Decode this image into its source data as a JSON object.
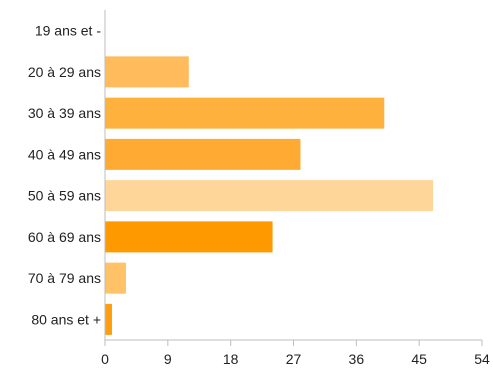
{
  "chart_data": {
    "type": "bar",
    "orientation": "horizontal",
    "categories": [
      "19 ans et -",
      "20 à 29 ans",
      "30 à 39 ans",
      "40 à 49 ans",
      "50 à 59 ans",
      "60 à 69 ans",
      "70 à 79 ans",
      "80 ans et +"
    ],
    "values": [
      0,
      12,
      40,
      28,
      47,
      24,
      3,
      1
    ],
    "bar_colors": [
      "#ffc06e",
      "#ffbb5c",
      "#ffb13d",
      "#ffab33",
      "#ffd699",
      "#ff9900",
      "#ffc266",
      "#ff9e0f"
    ],
    "xlim": [
      0,
      54
    ],
    "xticks": [
      0,
      9,
      18,
      27,
      36,
      45,
      54
    ],
    "grid": false,
    "title": "",
    "xlabel": "",
    "ylabel": ""
  }
}
